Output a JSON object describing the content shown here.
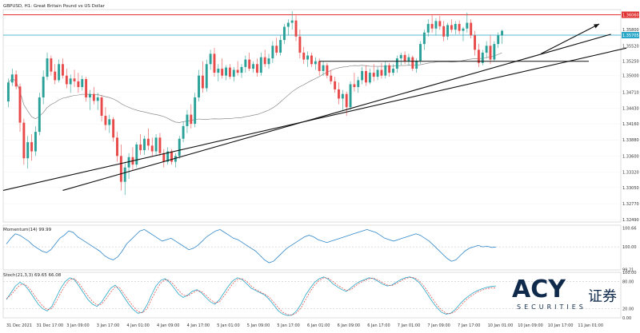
{
  "title": "GBPUSD, H1: Great Britain Pound vs US Dollar",
  "momentum_label": "Momentum(14) 99.99",
  "stoch_label": "Stoch(21,3,3) 69.65 66.08",
  "brand": {
    "name": "ACY",
    "chinese": "证券",
    "sub": "SECURITIES"
  },
  "colors": {
    "bull": "#2aa198",
    "bear": "#e84a4a",
    "resistance": "#e03030",
    "level": "#2aa7c7",
    "trend": "#111111",
    "ma": "#777777",
    "momentum": "#2f86c8",
    "stoch_main": "#2aa7c7",
    "stoch_signal": "#e04040"
  },
  "price_markers": [
    "1.36060",
    "1.35705"
  ],
  "chart_data": {
    "type": "candlestick",
    "main": {
      "yticks": [
        "1.36060",
        "1.35800",
        "1.35705",
        "1.35520",
        "1.35250",
        "1.35000",
        "1.34710",
        "1.34430",
        "1.34160",
        "1.33880",
        "1.33600",
        "1.33320",
        "1.33050",
        "1.32770",
        "1.32490"
      ],
      "ylim": [
        1.3245,
        1.3615
      ],
      "resistance": 1.3606,
      "level_line": 1.35705,
      "support": 1.3525,
      "candles": [
        [
          1.3455,
          1.3495,
          1.3445,
          1.3488
        ],
        [
          1.3488,
          1.3512,
          1.3482,
          1.3502
        ],
        [
          1.3502,
          1.3509,
          1.3476,
          1.3481
        ],
        [
          1.3481,
          1.3486,
          1.3402,
          1.3418
        ],
        [
          1.3418,
          1.3425,
          1.3345,
          1.3356
        ],
        [
          1.3356,
          1.3395,
          1.3338,
          1.3384
        ],
        [
          1.3384,
          1.3398,
          1.3352,
          1.3368
        ],
        [
          1.3368,
          1.3412,
          1.336,
          1.3402
        ],
        [
          1.3402,
          1.347,
          1.3396,
          1.3462
        ],
        [
          1.3462,
          1.3509,
          1.345,
          1.3498
        ],
        [
          1.3498,
          1.354,
          1.3492,
          1.353
        ],
        [
          1.353,
          1.3535,
          1.35,
          1.3507
        ],
        [
          1.3507,
          1.352,
          1.3485,
          1.3492
        ],
        [
          1.3492,
          1.3528,
          1.3488,
          1.352
        ],
        [
          1.352,
          1.353,
          1.3495,
          1.35
        ],
        [
          1.35,
          1.3512,
          1.3478,
          1.3485
        ],
        [
          1.3485,
          1.3502,
          1.347,
          1.3495
        ],
        [
          1.3495,
          1.351,
          1.348,
          1.349
        ],
        [
          1.349,
          1.3505,
          1.347,
          1.348
        ],
        [
          1.348,
          1.35,
          1.3474,
          1.3494
        ],
        [
          1.3494,
          1.3498,
          1.3455,
          1.3462
        ],
        [
          1.3462,
          1.3475,
          1.344,
          1.3468
        ],
        [
          1.3468,
          1.348,
          1.345,
          1.3456
        ],
        [
          1.3456,
          1.347,
          1.344,
          1.3462
        ],
        [
          1.3462,
          1.3466,
          1.342,
          1.343
        ],
        [
          1.343,
          1.3445,
          1.3405,
          1.3414
        ],
        [
          1.3414,
          1.3432,
          1.34,
          1.3424
        ],
        [
          1.3424,
          1.3428,
          1.3385,
          1.3392
        ],
        [
          1.3392,
          1.3402,
          1.335,
          1.336
        ],
        [
          1.336,
          1.338,
          1.33,
          1.3315
        ],
        [
          1.3315,
          1.335,
          1.3292,
          1.334
        ],
        [
          1.334,
          1.3365,
          1.332,
          1.3358
        ],
        [
          1.3358,
          1.3375,
          1.3335,
          1.3345
        ],
        [
          1.3345,
          1.3384,
          1.334,
          1.338
        ],
        [
          1.338,
          1.3398,
          1.3362,
          1.337
        ],
        [
          1.337,
          1.3395,
          1.3362,
          1.339
        ],
        [
          1.339,
          1.3408,
          1.337,
          1.3378
        ],
        [
          1.3378,
          1.3392,
          1.336,
          1.3368
        ],
        [
          1.3368,
          1.3398,
          1.3362,
          1.3392
        ],
        [
          1.3392,
          1.34,
          1.336,
          1.3365
        ],
        [
          1.3365,
          1.3372,
          1.334,
          1.335
        ],
        [
          1.335,
          1.3375,
          1.3345,
          1.3368
        ],
        [
          1.3368,
          1.3372,
          1.3345,
          1.335
        ],
        [
          1.335,
          1.3365,
          1.334,
          1.336
        ],
        [
          1.336,
          1.3395,
          1.3355,
          1.339
        ],
        [
          1.339,
          1.342,
          1.3384,
          1.3412
        ],
        [
          1.3412,
          1.344,
          1.34,
          1.3432
        ],
        [
          1.3432,
          1.345,
          1.3408,
          1.3416
        ],
        [
          1.3416,
          1.347,
          1.341,
          1.3462
        ],
        [
          1.3462,
          1.351,
          1.3455,
          1.35
        ],
        [
          1.35,
          1.3525,
          1.347,
          1.3478
        ],
        [
          1.3478,
          1.3528,
          1.3472,
          1.352
        ],
        [
          1.352,
          1.3545,
          1.351,
          1.3538
        ],
        [
          1.3538,
          1.3548,
          1.3498,
          1.3505
        ],
        [
          1.3505,
          1.352,
          1.349,
          1.3512
        ],
        [
          1.3512,
          1.353,
          1.3495,
          1.35
        ],
        [
          1.35,
          1.3518,
          1.3492,
          1.3514
        ],
        [
          1.3514,
          1.352,
          1.3494,
          1.3498
        ],
        [
          1.3498,
          1.3515,
          1.349,
          1.351
        ],
        [
          1.351,
          1.3525,
          1.35,
          1.3505
        ],
        [
          1.3505,
          1.352,
          1.3496,
          1.3515
        ],
        [
          1.3515,
          1.3535,
          1.3505,
          1.3528
        ],
        [
          1.3528,
          1.354,
          1.3508,
          1.3512
        ],
        [
          1.3512,
          1.3525,
          1.3505,
          1.352
        ],
        [
          1.352,
          1.353,
          1.3498,
          1.3505
        ],
        [
          1.3505,
          1.354,
          1.35,
          1.3532
        ],
        [
          1.3532,
          1.3545,
          1.3515,
          1.352
        ],
        [
          1.352,
          1.3538,
          1.3512,
          1.353
        ],
        [
          1.353,
          1.356,
          1.3522,
          1.3552
        ],
        [
          1.3552,
          1.3566,
          1.3535,
          1.354
        ],
        [
          1.354,
          1.357,
          1.3535,
          1.3562
        ],
        [
          1.3562,
          1.359,
          1.3555,
          1.3585
        ],
        [
          1.3585,
          1.3598,
          1.357,
          1.3592
        ],
        [
          1.3592,
          1.3612,
          1.358,
          1.3596
        ],
        [
          1.3596,
          1.3605,
          1.356,
          1.3568
        ],
        [
          1.3568,
          1.358,
          1.353,
          1.354
        ],
        [
          1.354,
          1.355,
          1.352,
          1.3528
        ],
        [
          1.3528,
          1.3542,
          1.3515,
          1.3535
        ],
        [
          1.3535,
          1.354,
          1.3515,
          1.352
        ],
        [
          1.352,
          1.3532,
          1.351,
          1.3525
        ],
        [
          1.3525,
          1.353,
          1.35,
          1.3508
        ],
        [
          1.3508,
          1.3525,
          1.35,
          1.3518
        ],
        [
          1.3518,
          1.3522,
          1.3495,
          1.35
        ],
        [
          1.35,
          1.351,
          1.3485,
          1.349
        ],
        [
          1.349,
          1.3498,
          1.347,
          1.3476
        ],
        [
          1.3476,
          1.3488,
          1.345,
          1.346
        ],
        [
          1.346,
          1.3475,
          1.344,
          1.3468
        ],
        [
          1.3468,
          1.3472,
          1.343,
          1.3445
        ],
        [
          1.3445,
          1.349,
          1.344,
          1.3485
        ],
        [
          1.3485,
          1.3505,
          1.3472,
          1.348
        ],
        [
          1.348,
          1.3498,
          1.347,
          1.3492
        ],
        [
          1.3492,
          1.3515,
          1.3485,
          1.3508
        ],
        [
          1.3508,
          1.3518,
          1.3482,
          1.3488
        ],
        [
          1.3488,
          1.3512,
          1.3485,
          1.3505
        ],
        [
          1.3505,
          1.352,
          1.349,
          1.3498
        ],
        [
          1.3498,
          1.3515,
          1.3492,
          1.351
        ],
        [
          1.351,
          1.3522,
          1.3495,
          1.35
        ],
        [
          1.35,
          1.3525,
          1.3495,
          1.3518
        ],
        [
          1.3518,
          1.3522,
          1.3498,
          1.3505
        ],
        [
          1.3505,
          1.352,
          1.35,
          1.3512
        ],
        [
          1.3512,
          1.3535,
          1.3505,
          1.353
        ],
        [
          1.353,
          1.354,
          1.3518,
          1.3536
        ],
        [
          1.3536,
          1.3542,
          1.352,
          1.3525
        ],
        [
          1.3525,
          1.3538,
          1.3518,
          1.3532
        ],
        [
          1.3532,
          1.3535,
          1.3508,
          1.3512
        ],
        [
          1.3512,
          1.353,
          1.3505,
          1.3526
        ],
        [
          1.3526,
          1.356,
          1.352,
          1.3555
        ],
        [
          1.3555,
          1.358,
          1.3545,
          1.3575
        ],
        [
          1.3575,
          1.3598,
          1.3568,
          1.359
        ],
        [
          1.359,
          1.3605,
          1.3575,
          1.3582
        ],
        [
          1.3582,
          1.36,
          1.357,
          1.3595
        ],
        [
          1.3595,
          1.3604,
          1.358,
          1.3586
        ],
        [
          1.3586,
          1.3595,
          1.356,
          1.3568
        ],
        [
          1.3568,
          1.3592,
          1.3562,
          1.3588
        ],
        [
          1.3588,
          1.3598,
          1.3575,
          1.358
        ],
        [
          1.358,
          1.3595,
          1.3572,
          1.359
        ],
        [
          1.359,
          1.3596,
          1.3572,
          1.3578
        ],
        [
          1.3578,
          1.3585,
          1.356,
          1.3582
        ],
        [
          1.3582,
          1.361,
          1.3575,
          1.3592
        ],
        [
          1.3592,
          1.3598,
          1.3565,
          1.357
        ],
        [
          1.357,
          1.3578,
          1.3535,
          1.3545
        ],
        [
          1.3545,
          1.3555,
          1.3515,
          1.3522
        ],
        [
          1.3522,
          1.3545,
          1.3518,
          1.354
        ],
        [
          1.354,
          1.356,
          1.353,
          1.3552
        ],
        [
          1.3552,
          1.357,
          1.352,
          1.3528
        ],
        [
          1.3528,
          1.356,
          1.3525,
          1.3555
        ],
        [
          1.3555,
          1.3575,
          1.3548,
          1.357
        ],
        [
          1.357,
          1.358,
          1.3555,
          1.3578
        ]
      ],
      "trendlines": [
        {
          "name": "long-trend",
          "points": [
            [
              0,
              1.33
            ],
            [
              159,
              1.3548
            ]
          ]
        },
        {
          "name": "steep-trend",
          "points": [
            [
              14,
              1.33
            ],
            [
              155,
              1.3572
            ]
          ]
        },
        {
          "name": "arrow-trend",
          "points": [
            [
              137,
              1.3538
            ],
            [
              152,
              1.359
            ]
          ]
        }
      ],
      "time_labels": [
        "31 Dec 2021",
        "31 Dec 17:00",
        "3 Jan 09:00",
        "3 Jan 17:00",
        "4 Jan 01:00",
        "4 Jan 09:00",
        "4 Jan 17:00",
        "5 Jan 01:00",
        "5 Jan 09:00",
        "5 Jan 17:00",
        "6 Jan 01:00",
        "6 Jan 09:00",
        "6 Jan 17:00",
        "7 Jan 01:00",
        "7 Jan 09:00",
        "7 Jan 17:00",
        "10 Jan 01:00",
        "10 Jan 09:00",
        "10 Jan 17:00",
        "11 Jan 01:00"
      ]
    },
    "momentum": {
      "ylim": [
        99.2,
        100.75
      ],
      "ref": 100.0,
      "yticks": [
        "100.66",
        "100.00",
        "99.21"
      ],
      "values": [
        100.1,
        100.3,
        100.45,
        100.4,
        100.3,
        100.2,
        100.05,
        99.95,
        99.85,
        99.8,
        99.9,
        100.1,
        100.3,
        100.4,
        100.55,
        100.5,
        100.35,
        100.25,
        100.15,
        100.05,
        99.95,
        99.85,
        99.7,
        99.6,
        99.55,
        99.65,
        99.85,
        100.1,
        100.25,
        100.4,
        100.55,
        100.6,
        100.5,
        100.4,
        100.3,
        100.2,
        100.25,
        100.3,
        100.2,
        100.1,
        100.0,
        99.9,
        99.95,
        100.05,
        100.2,
        100.35,
        100.45,
        100.55,
        100.6,
        100.5,
        100.4,
        100.3,
        100.25,
        100.15,
        100.05,
        99.95,
        99.85,
        99.7,
        99.55,
        99.45,
        99.5,
        99.65,
        99.8,
        99.95,
        100.05,
        100.15,
        100.25,
        100.35,
        100.4,
        100.35,
        100.25,
        100.2,
        100.15,
        100.2,
        100.25,
        100.3,
        100.35,
        100.4,
        100.45,
        100.5,
        100.55,
        100.6,
        100.55,
        100.5,
        100.4,
        100.3,
        100.25,
        100.2,
        100.25,
        100.3,
        100.35,
        100.4,
        100.45,
        100.4,
        100.3,
        100.2,
        100.05,
        99.9,
        99.75,
        99.6,
        99.5,
        99.55,
        99.7,
        99.85,
        99.95,
        100.0,
        100.05,
        100.0,
        100.02,
        99.98,
        99.99
      ],
      "reference_ticks": [
        "100.66",
        "100.00",
        "99.21"
      ]
    },
    "stoch": {
      "ylim": [
        0,
        100
      ],
      "levels": [
        80,
        20
      ],
      "yticks": [
        "100.00",
        "80.00",
        "20.00",
        "0.00"
      ],
      "main": [
        40,
        55,
        70,
        78,
        72,
        60,
        45,
        30,
        20,
        15,
        25,
        45,
        65,
        80,
        88,
        84,
        70,
        55,
        40,
        30,
        25,
        35,
        50,
        65,
        72,
        60,
        45,
        30,
        18,
        10,
        12,
        28,
        50,
        70,
        82,
        86,
        78,
        65,
        52,
        45,
        50,
        58,
        62,
        55,
        45,
        35,
        30,
        40,
        55,
        70,
        82,
        88,
        84,
        75,
        65,
        60,
        55,
        50,
        40,
        28,
        15,
        8,
        5,
        6,
        15,
        30,
        50,
        65,
        78,
        86,
        90,
        85,
        75,
        68,
        62,
        58,
        66,
        74,
        80,
        84,
        88,
        86,
        80,
        74,
        70,
        72,
        78,
        84,
        88,
        90,
        86,
        78,
        65,
        50,
        35,
        22,
        12,
        8,
        10,
        18,
        30,
        40,
        48,
        55,
        60,
        64,
        67,
        69,
        70
      ],
      "signal": [
        42,
        50,
        62,
        72,
        74,
        66,
        52,
        38,
        26,
        18,
        20,
        35,
        55,
        72,
        84,
        86,
        76,
        62,
        48,
        36,
        28,
        30,
        42,
        56,
        68,
        66,
        52,
        38,
        25,
        14,
        11,
        20,
        40,
        60,
        76,
        84,
        82,
        72,
        60,
        50,
        48,
        54,
        60,
        58,
        50,
        40,
        33,
        35,
        48,
        62,
        76,
        85,
        86,
        80,
        70,
        62,
        57,
        52,
        45,
        34,
        22,
        12,
        7,
        6,
        11,
        22,
        40,
        58,
        72,
        82,
        88,
        87,
        80,
        72,
        66,
        60,
        62,
        70,
        77,
        82,
        86,
        87,
        83,
        77,
        72,
        71,
        75,
        81,
        86,
        89,
        88,
        82,
        71,
        57,
        42,
        28,
        17,
        10,
        9,
        14,
        24,
        35,
        44,
        51,
        57,
        61,
        64,
        66,
        66
      ]
    }
  }
}
